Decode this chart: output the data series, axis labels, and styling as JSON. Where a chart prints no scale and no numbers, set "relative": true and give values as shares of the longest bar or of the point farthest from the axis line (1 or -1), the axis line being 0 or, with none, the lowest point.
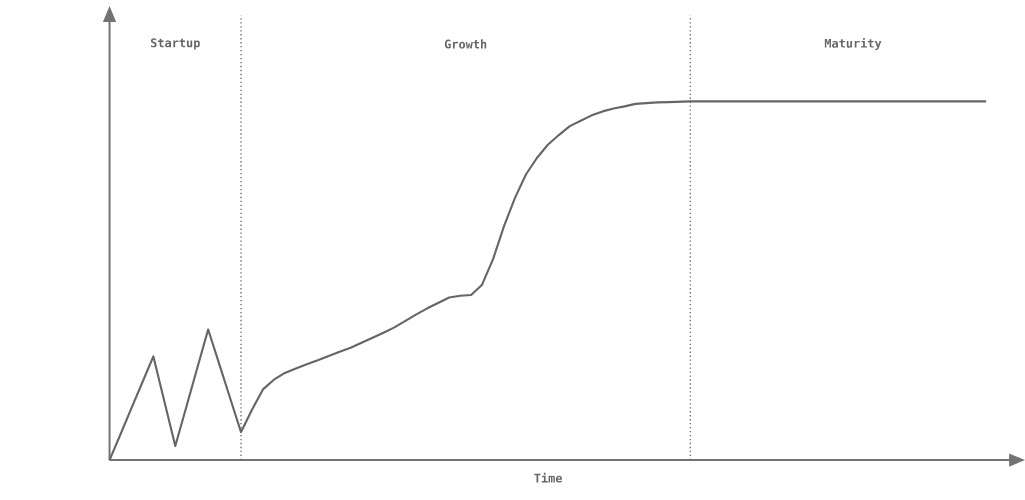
{
  "chart_data": {
    "type": "line",
    "relative": true,
    "xlabel": "Time",
    "categories": [
      null,
      null,
      null,
      null,
      null,
      null,
      null,
      null,
      null,
      null,
      null,
      null,
      null,
      null,
      null,
      null,
      null,
      null,
      null,
      null,
      null,
      null,
      null,
      null,
      null,
      null,
      null,
      null,
      null,
      null,
      null,
      null,
      null,
      null,
      null,
      null,
      null,
      null,
      null,
      null,
      null,
      null,
      null,
      null,
      null,
      null,
      null,
      null,
      null,
      null,
      null,
      null,
      null,
      null,
      null,
      null,
      null,
      null,
      null,
      null,
      null,
      null,
      null,
      null,
      null,
      null,
      null,
      null,
      null,
      null,
      null,
      null,
      null,
      null,
      null,
      null,
      null,
      null,
      null,
      null,
      null
    ],
    "series": [
      {
        "color": "#666666",
        "values": [
          0,
          0.072,
          0.145,
          0.217,
          0.289,
          0.164,
          0.039,
          0.147,
          0.256,
          0.364,
          0.269,
          0.173,
          0.078,
          0.14,
          0.197,
          0.224,
          0.243,
          0.255,
          0.267,
          0.278,
          0.29,
          0.302,
          0.313,
          0.327,
          0.341,
          0.355,
          0.37,
          0.388,
          0.406,
          0.423,
          0.438,
          0.453,
          0.458,
          0.46,
          0.489,
          0.56,
          0.652,
          0.731,
          0.796,
          0.842,
          0.879,
          0.906,
          0.931,
          0.946,
          0.961,
          0.972,
          0.98,
          0.986,
          0.993,
          0.995,
          0.997,
          0.998,
          0.999,
          1,
          1,
          1,
          1,
          1,
          1,
          1,
          1,
          1,
          1,
          1,
          1,
          1,
          1,
          1,
          1,
          1,
          1,
          1,
          1,
          1,
          1,
          1,
          1,
          1,
          1,
          1,
          1
        ]
      }
    ],
    "annotations": [
      "Startup",
      "Growth",
      "Maturity"
    ],
    "marker": "none",
    "line_style": "solid"
  }
}
